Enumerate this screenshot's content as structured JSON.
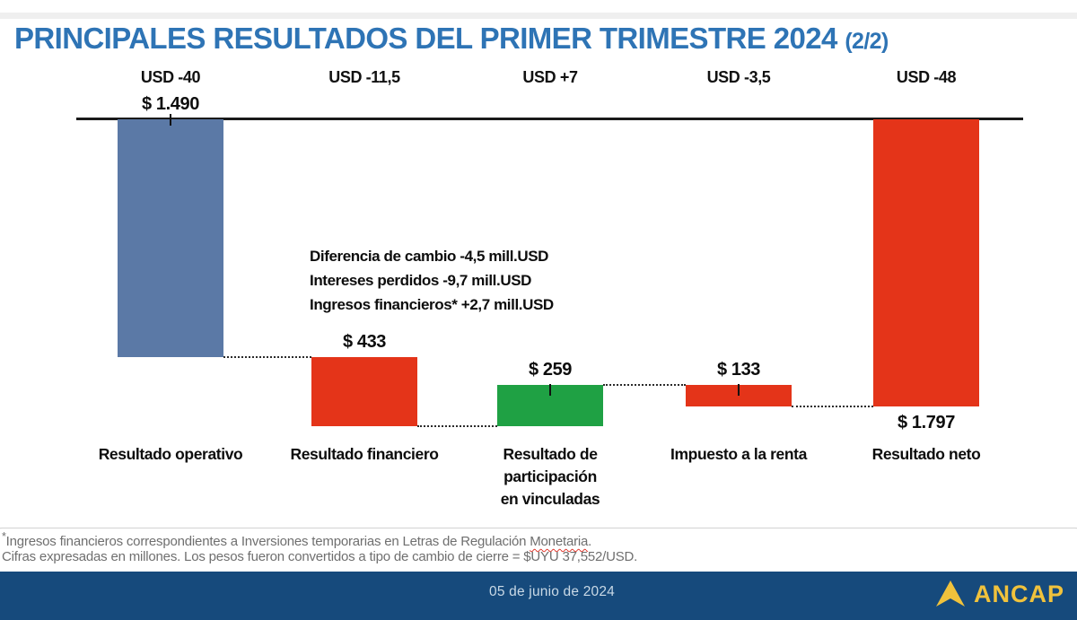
{
  "title": {
    "main": "PRINCIPALES RESULTADOS DEL PRIMER TRIMESTRE 2024",
    "suffix": "(2/2)"
  },
  "chart_data": {
    "type": "bar",
    "subtype": "waterfall",
    "title": "Principales resultados del primer trimestre 2024",
    "unit_pesos": "millones de $ (pesos uruguayos)",
    "unit_usd": "millones de USD",
    "baseline": 0,
    "categories": [
      "Resultado operativo",
      "Resultado financiero",
      "Resultado de\nparticipación\nen vinculadas",
      "Impuesto a la renta",
      "Resultado neto"
    ],
    "bars": [
      {
        "category": "Resultado operativo",
        "usd_label": "USD -40",
        "usd_value": -40,
        "value_label": "$ 1.490",
        "value": -1490,
        "kind": "delta",
        "color_key": "bar_blue",
        "label_position": "above",
        "tick": true
      },
      {
        "category": "Resultado financiero",
        "usd_label": "USD -11,5",
        "usd_value": -11.5,
        "value_label": "$ 433",
        "value": -433,
        "kind": "delta",
        "color_key": "bar_red",
        "label_position": "above",
        "tick": false
      },
      {
        "category": "Resultado de\nparticipación\nen vinculadas",
        "usd_label": "USD +7",
        "usd_value": 7,
        "value_label": "$ 259",
        "value": 259,
        "kind": "delta",
        "color_key": "bar_green",
        "label_position": "above",
        "tick": true
      },
      {
        "category": "Impuesto a la renta",
        "usd_label": "USD -3,5",
        "usd_value": -3.5,
        "value_label": "$ 133",
        "value": -133,
        "kind": "delta",
        "color_key": "bar_red",
        "label_position": "above",
        "tick": true
      },
      {
        "category": "Resultado neto",
        "usd_label": "USD -48",
        "usd_value": -48,
        "value_label": "$ 1.797",
        "value": -1797,
        "kind": "total",
        "color_key": "bar_red",
        "label_position": "below",
        "tick": false
      }
    ]
  },
  "annotation": {
    "lines": [
      "Diferencia de cambio -4,5 mill.USD",
      "Intereses perdidos -9,7 mill.USD",
      "Ingresos financieros* +2,7 mill.USD"
    ]
  },
  "footnotes": {
    "line1_asterisk": "*",
    "line1_start": "Ingresos financieros correspondientes a Inversiones temporarias en Letras de Regulación ",
    "line1_highlight": "Monetaria",
    "line1_end": ".",
    "line2": "Cifras expresadas en millones. Los pesos fueron convertidos a tipo de cambio de cierre = $UYU 37,552/USD."
  },
  "footer": {
    "date": "05 de junio de 2024",
    "logo_text": "ANCAP"
  },
  "colors": {
    "title": "#2e74b5",
    "bar_blue": "#5b79a6",
    "bar_red": "#e43419",
    "bar_green": "#1fa144",
    "footer_bg": "#164a7c",
    "logo_yellow": "#f0c23c",
    "footnote_gray": "#6f6f6f"
  }
}
